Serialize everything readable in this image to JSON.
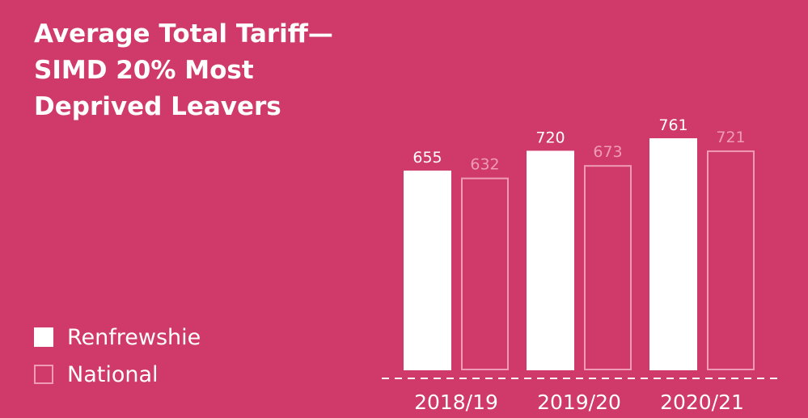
{
  "chart_data": {
    "type": "bar",
    "title_lines": [
      "Average Total Tariff—",
      "SIMD 20% Most",
      "Deprived Leavers"
    ],
    "categories": [
      "2018/19",
      "2019/20",
      "2020/21"
    ],
    "series": [
      {
        "name": "Renfrewshie",
        "values": [
          655,
          720,
          761
        ],
        "style": "filled",
        "color": "#ffffff"
      },
      {
        "name": "National",
        "values": [
          632,
          673,
          721
        ],
        "style": "outline",
        "color": "#ef9bb8"
      }
    ],
    "ylim": [
      0,
      761
    ],
    "grid": false,
    "legend_position": "bottom-left"
  },
  "colors": {
    "background": "#cf3a6b",
    "bar_fill": "#ffffff",
    "bar_outline": "#ef9bb8",
    "axis": "#ffffff"
  }
}
